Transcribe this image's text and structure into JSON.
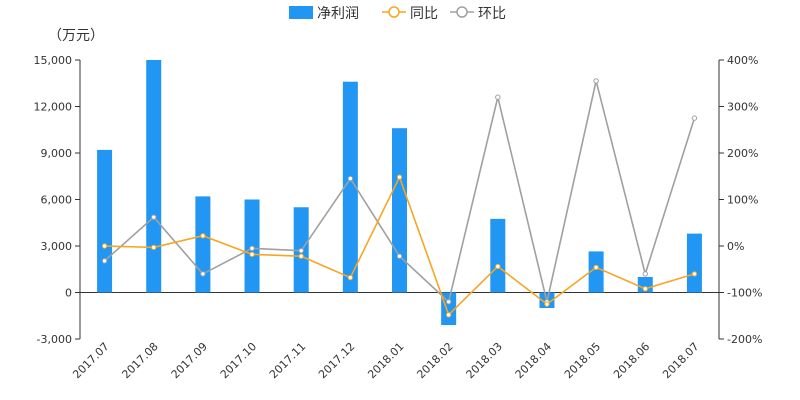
{
  "chart_data": {
    "type": "bar+line",
    "unit_label": "（万元）",
    "categories": [
      "2017.07",
      "2017.08",
      "2017.09",
      "2017.10",
      "2017.11",
      "2017.12",
      "2018.01",
      "2018.02",
      "2018.03",
      "2018.04",
      "2018.05",
      "2018.06",
      "2018.07"
    ],
    "bar_series": {
      "name": "净利润",
      "color": "#2196F3",
      "values": [
        9200,
        15000,
        6200,
        6000,
        5500,
        13600,
        10600,
        -2100,
        4750,
        -1000,
        2650,
        1000,
        3800
      ]
    },
    "line_series": [
      {
        "name": "同比",
        "color": "#F5A623",
        "axis": "right",
        "values": [
          0,
          -3,
          22,
          -18,
          -22,
          -68,
          148,
          -148,
          -44,
          -125,
          -46,
          -92,
          -60
        ]
      },
      {
        "name": "环比",
        "color": "#A0A0A0",
        "axis": "right",
        "values": [
          -32,
          62,
          -60,
          -5,
          -10,
          145,
          -22,
          -120,
          320,
          -120,
          355,
          -60,
          275
        ]
      }
    ],
    "left_axis": {
      "min": -3000,
      "max": 15000,
      "ticks": [
        -3000,
        0,
        3000,
        6000,
        9000,
        12000,
        15000
      ],
      "tick_labels": [
        "-3,000",
        "0",
        "3,000",
        "6,000",
        "9,000",
        "12,000",
        "15,000"
      ]
    },
    "right_axis": {
      "min": -200,
      "max": 400,
      "ticks": [
        -200,
        -100,
        0,
        100,
        200,
        300,
        400
      ],
      "tick_labels": [
        "-200%",
        "-100%",
        "0%",
        "100%",
        "200%",
        "300%",
        "400%"
      ]
    },
    "legend_position": "top-center",
    "grid": false
  }
}
